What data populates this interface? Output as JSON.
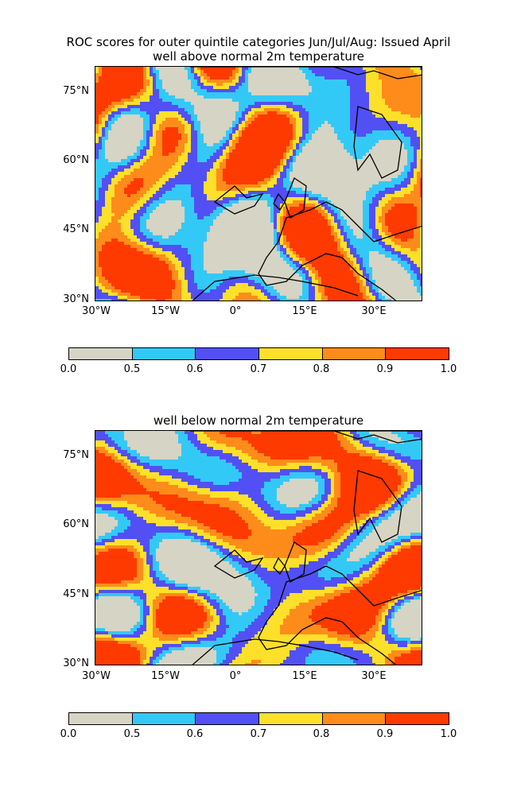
{
  "figure": {
    "title_line1": "ROC scores for outer quintile categories Jun/Jul/Aug: Issued April",
    "panels": [
      {
        "subtitle": "well above normal 2m temperature"
      },
      {
        "subtitle": "well below normal 2m temperature"
      }
    ],
    "lat_ticks": [
      "75°N",
      "60°N",
      "45°N",
      "30°N"
    ],
    "lon_ticks": [
      "30°W",
      "15°W",
      "0°",
      "15°E",
      "30°E"
    ],
    "colorbar": {
      "levels": [
        "0.0",
        "0.5",
        "0.6",
        "0.7",
        "0.8",
        "0.9",
        "1.0"
      ],
      "colors": [
        "#d6d4c4",
        "#33c9f7",
        "#5250f4",
        "#fde02a",
        "#fe8c1a",
        "#fe3a00"
      ]
    }
  },
  "chart_data": [
    {
      "type": "heatmap",
      "title": "ROC scores for outer quintile categories Jun/Jul/Aug: Issued April",
      "subtitle": "well above normal 2m temperature",
      "lat_range": [
        30,
        81
      ],
      "lon_range": [
        -30,
        41
      ],
      "levels": [
        0.0,
        0.5,
        0.6,
        0.7,
        0.8,
        0.9,
        1.0
      ]
    },
    {
      "type": "heatmap",
      "subtitle": "well below normal 2m temperature",
      "lat_range": [
        30,
        81
      ],
      "lon_range": [
        -30,
        41
      ],
      "levels": [
        0.0,
        0.5,
        0.6,
        0.7,
        0.8,
        0.9,
        1.0
      ]
    }
  ]
}
